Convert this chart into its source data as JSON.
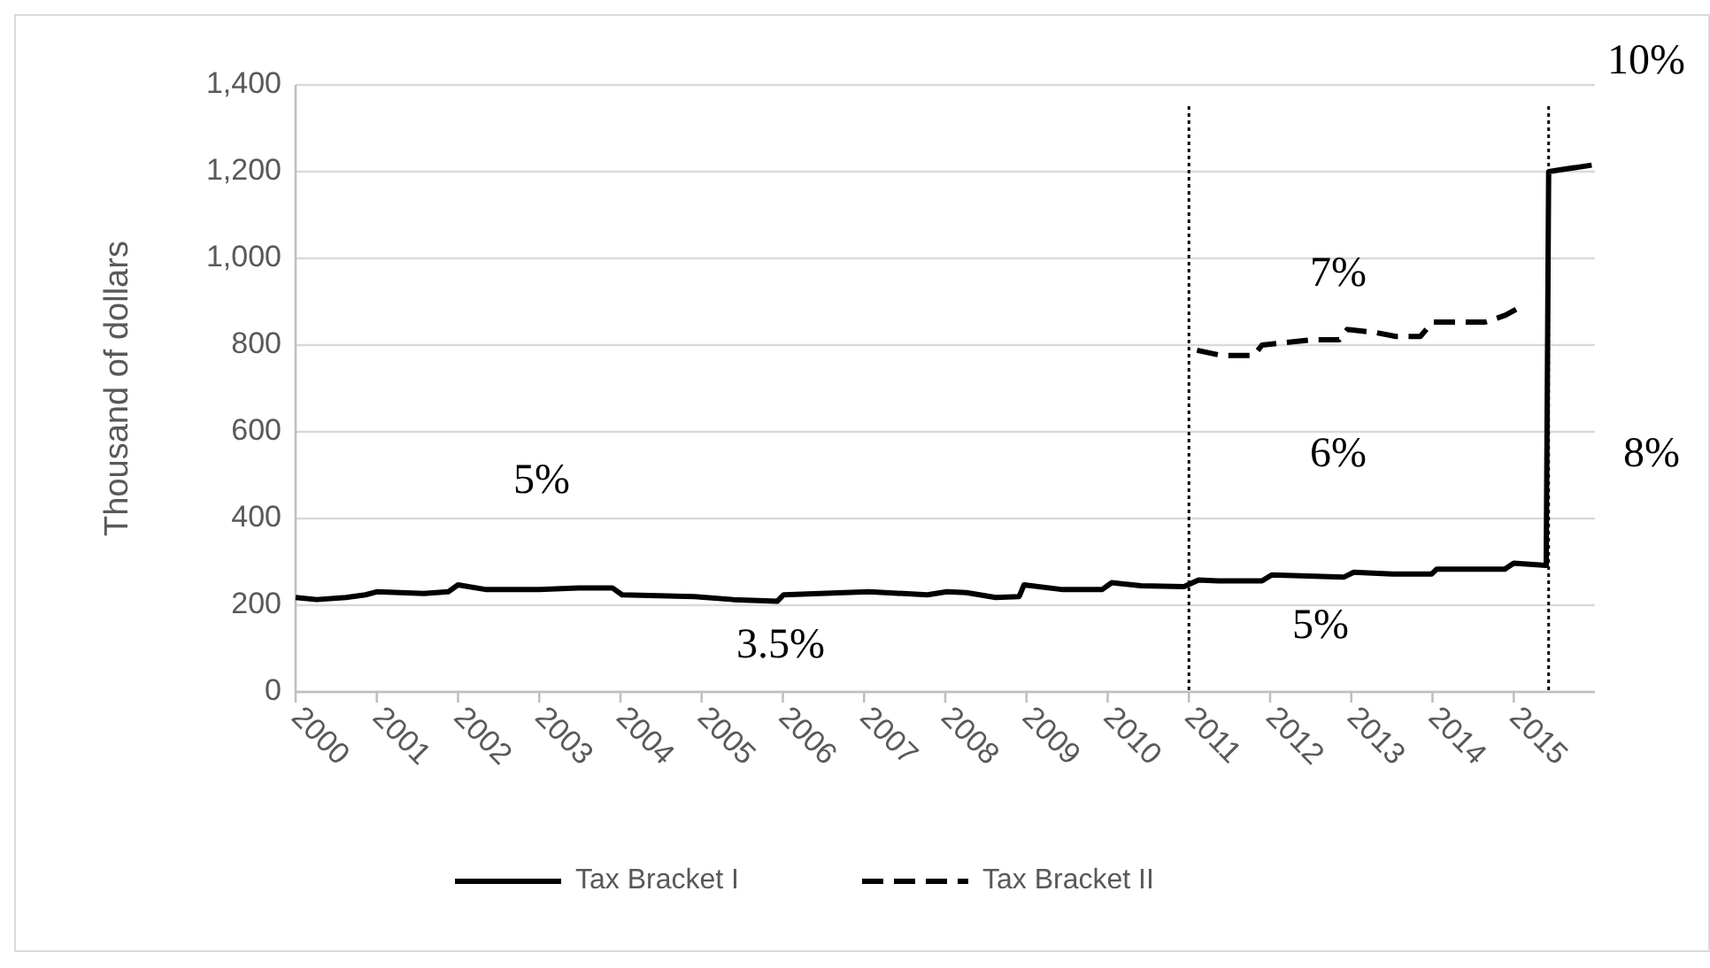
{
  "chart_data": {
    "type": "line",
    "ylabel": "Thousand of dollars",
    "xlim": [
      2000,
      2016
    ],
    "xticks": [
      2000,
      2001,
      2002,
      2003,
      2004,
      2005,
      2006,
      2007,
      2008,
      2009,
      2010,
      2011,
      2012,
      2013,
      2014,
      2015
    ],
    "ylim": [
      0,
      1400
    ],
    "yticks": [
      {
        "value": 0,
        "label": "0"
      },
      {
        "value": 200,
        "label": "200"
      },
      {
        "value": 400,
        "label": "400"
      },
      {
        "value": 600,
        "label": "600"
      },
      {
        "value": 800,
        "label": "800"
      },
      {
        "value": 1000,
        "label": "1,000"
      },
      {
        "value": 1200,
        "label": "1,200"
      },
      {
        "value": 1400,
        "label": "1,400"
      }
    ],
    "grid": "y",
    "legend": "bottom",
    "series": [
      {
        "name": "Tax Bracket I",
        "color": "#000000",
        "line_style": "solid",
        "x": [
          2000,
          2000.26,
          2000.62,
          2000.86,
          2001,
          2001.58,
          2001.88,
          2002,
          2002.35,
          2003,
          2003.48,
          2003.9,
          2004.02,
          2004.91,
          2005.39,
          2005.93,
          2006.01,
          2007.06,
          2007.78,
          2008.02,
          2008.26,
          2008.62,
          2008.91,
          2008.97,
          2009.45,
          2009.93,
          2010.05,
          2010.41,
          2010.94,
          2011.12,
          2011.36,
          2011.9,
          2012.02,
          2012.91,
          2013.03,
          2013.51,
          2013.99,
          2014.05,
          2014.89,
          2015.0,
          2015.4,
          2015.43,
          2015.6,
          2015.96
        ],
        "values": [
          218,
          213,
          218,
          224,
          231,
          227,
          231,
          247,
          236,
          236,
          240,
          240,
          224,
          220,
          213,
          209,
          224,
          231,
          224,
          231,
          229,
          218,
          220,
          247,
          236,
          236,
          252,
          245,
          243,
          258,
          256,
          256,
          270,
          265,
          276,
          272,
          272,
          283,
          283,
          297,
          292,
          1200,
          1205,
          1215
        ]
      },
      {
        "name": "Tax Bracket II",
        "color": "#000000",
        "line_style": "dashed",
        "x": [
          2011.1,
          2011.4,
          2011.8,
          2011.9,
          2012.5,
          2012.85,
          2012.95,
          2013.3,
          2013.55,
          2013.85,
          2014.0,
          2014.65,
          2014.9,
          2015.1
        ],
        "values": [
          788,
          776,
          776,
          800,
          812,
          812,
          836,
          829,
          820,
          820,
          853,
          853,
          869,
          890
        ]
      }
    ],
    "ref_lines": [
      {
        "axis": "x",
        "value": 2011,
        "color": "#000000",
        "line_style": "dotted"
      },
      {
        "axis": "x",
        "value": 2015.43,
        "color": "#000000",
        "line_style": "dotted"
      }
    ],
    "annotations": [
      "5%",
      "3.5%",
      "7%",
      "6%",
      "5%",
      "10%",
      "8%"
    ]
  }
}
